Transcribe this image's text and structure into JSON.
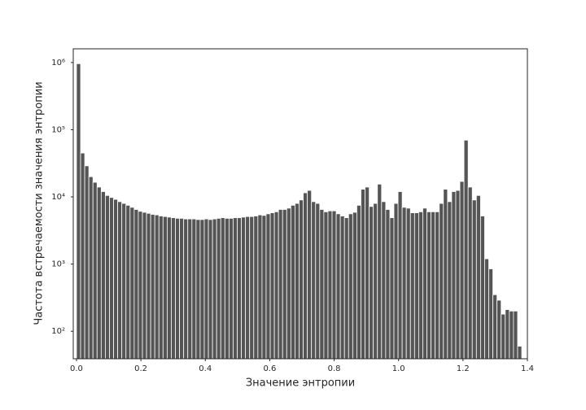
{
  "chart_data": {
    "type": "histogram",
    "xlabel": "Значение энтропии",
    "ylabel": "Частота встречаемости значения энтропии",
    "color": "#555555",
    "edgecolor": "#ffffff",
    "log_y": true,
    "bins": [
      0,
      0.0128,
      0.0256,
      0.0384,
      0.0512,
      0.064,
      0.0768,
      0.0896,
      0.1024,
      0.1152,
      0.128,
      0.1408,
      0.1536,
      0.1664,
      0.1792,
      0.192,
      0.2048,
      0.2176,
      0.2304,
      0.2432,
      0.256,
      0.2688,
      0.2816,
      0.2944,
      0.3072,
      0.32,
      0.3328,
      0.3456,
      0.3584,
      0.3712,
      0.384,
      0.3968,
      0.4096,
      0.4224,
      0.4352,
      0.448,
      0.4608,
      0.4736,
      0.4864,
      0.4992,
      0.512,
      0.5248,
      0.5376,
      0.5504,
      0.5632,
      0.576,
      0.5888,
      0.6016,
      0.6144,
      0.6272,
      0.64,
      0.6528,
      0.6656,
      0.6784,
      0.6912,
      0.704,
      0.7168,
      0.7296,
      0.7424,
      0.7552,
      0.768,
      0.7808,
      0.7936,
      0.8064,
      0.8192,
      0.832,
      0.8448,
      0.8576,
      0.8704,
      0.8832,
      0.896,
      0.9088,
      0.9216,
      0.9344,
      0.9472,
      0.96,
      0.9728,
      0.9856,
      0.9984,
      1.0112,
      1.024,
      1.0368,
      1.0496,
      1.0624,
      1.0752,
      1.088,
      1.1008,
      1.1136,
      1.1264,
      1.1392,
      1.152,
      1.1648,
      1.1776,
      1.1904,
      1.2032,
      1.216,
      1.2288,
      1.2416,
      1.2544,
      1.2672,
      1.28,
      1.2928,
      1.3056,
      1.3184,
      1.3312,
      1.344,
      1.3568,
      1.3696,
      1.3824
    ],
    "values": [
      960000,
      45000,
      29000,
      20000,
      16500,
      14000,
      12000,
      10500,
      9800,
      9200,
      8500,
      8000,
      7500,
      7000,
      6500,
      6100,
      5900,
      5700,
      5500,
      5400,
      5200,
      5100,
      5000,
      4900,
      4800,
      4800,
      4700,
      4700,
      4700,
      4600,
      4600,
      4700,
      4600,
      4700,
      4800,
      4900,
      4800,
      4800,
      4900,
      4900,
      5000,
      5100,
      5100,
      5200,
      5400,
      5300,
      5600,
      5800,
      6000,
      6500,
      6500,
      6800,
      7500,
      8000,
      9000,
      11500,
      12500,
      8500,
      8000,
      6500,
      6000,
      6200,
      6200,
      5600,
      5200,
      4900,
      5600,
      5900,
      7500,
      13000,
      14000,
      7200,
      8000,
      15500,
      8500,
      6500,
      4900,
      8000,
      12000,
      7000,
      6800,
      5800,
      5800,
      6000,
      6800,
      6000,
      6000,
      6000,
      8000,
      13000,
      8500,
      12000,
      12500,
      17000,
      70000,
      14000,
      9000,
      10500,
      5200,
      1200,
      850,
      350,
      290,
      180,
      210,
      200,
      200,
      60
    ],
    "xlim": [
      -0.01,
      1.4
    ],
    "xticks": [
      {
        "value": 0,
        "label": "0.0"
      },
      0.2,
      0.4,
      0.6,
      0.8,
      {
        "value": 1,
        "label": "1.0"
      },
      1.2,
      1.4
    ],
    "ylim": [
      39,
      1600000
    ],
    "yticks": [
      {
        "value": 100,
        "label": "10²"
      },
      {
        "value": 1000,
        "label": "10³"
      },
      {
        "value": 10000,
        "label": "10⁴"
      },
      {
        "value": 100000,
        "label": "10⁵"
      },
      {
        "value": 1000000,
        "label": "10⁶"
      }
    ]
  }
}
